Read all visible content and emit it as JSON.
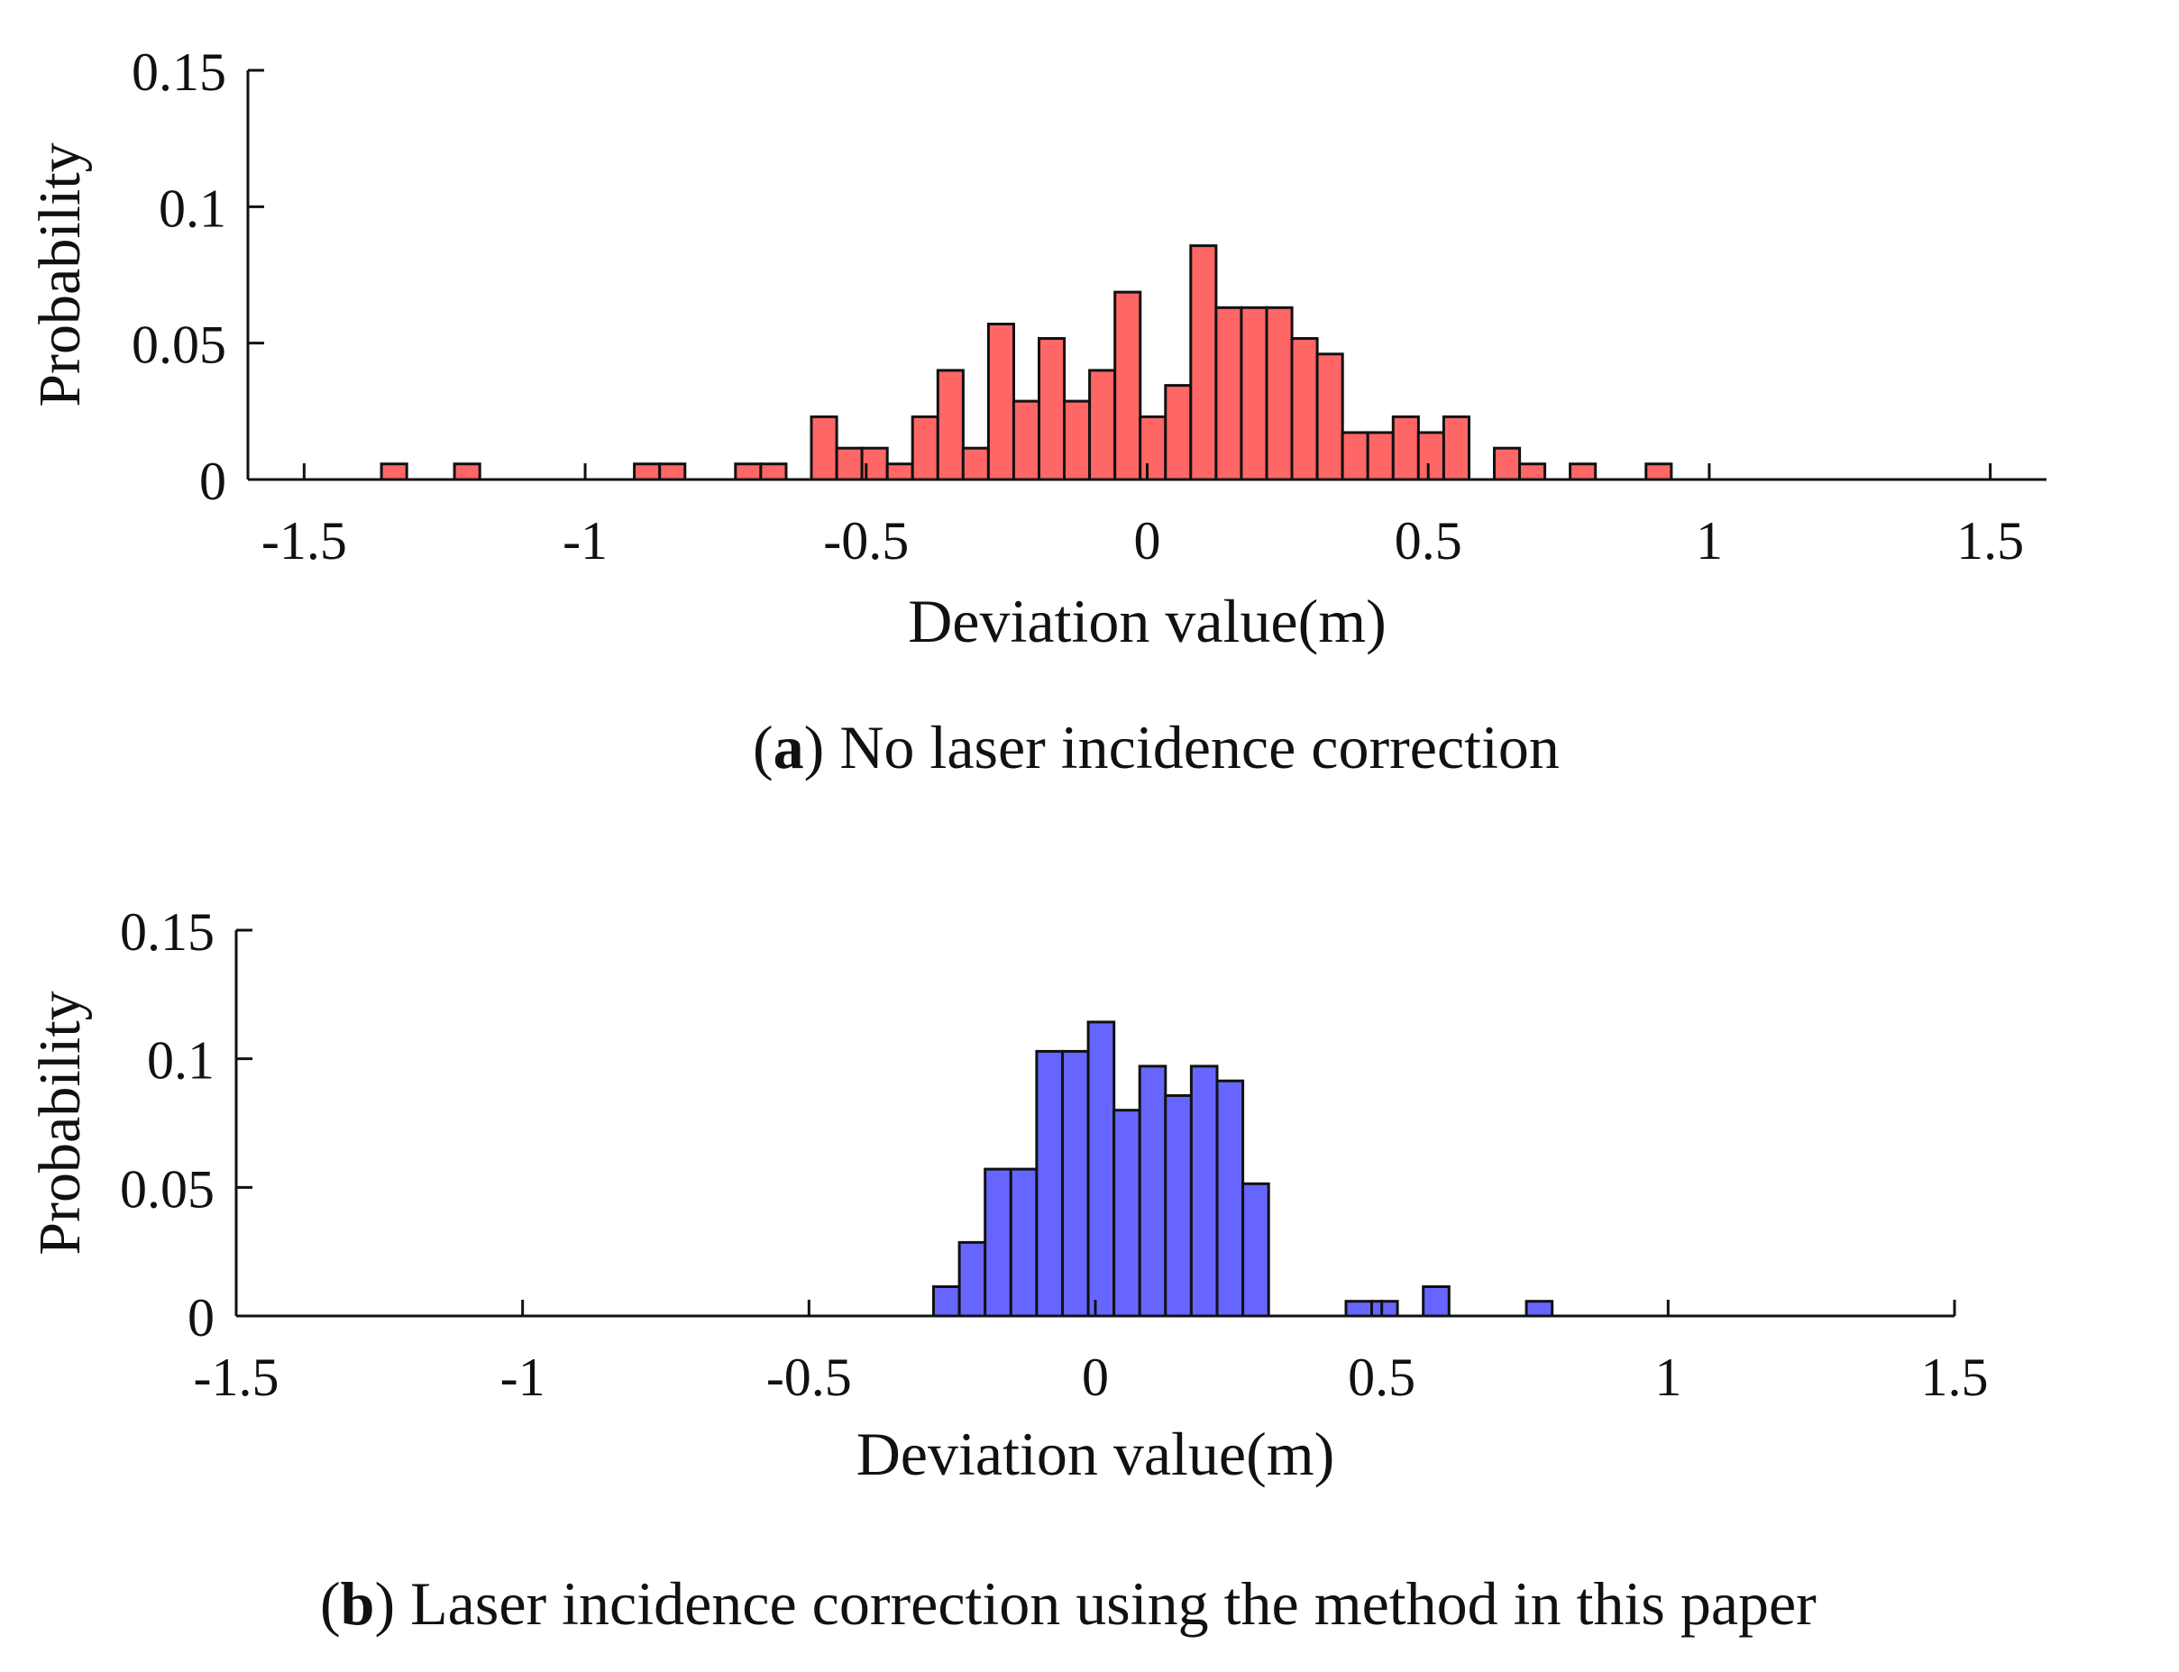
{
  "chart_data": [
    {
      "id": "a",
      "type": "bar",
      "subtype": "histogram",
      "caption_letter": "a",
      "caption_text": "No laser incidence correction",
      "xlabel": "Deviation value(m)",
      "ylabel": "Probability",
      "xlim": [
        -1.6,
        1.6
      ],
      "ylim": [
        0,
        0.15
      ],
      "xticks": [
        -1.5,
        -1,
        -0.5,
        0,
        0.5,
        1,
        1.5
      ],
      "xtick_labels": [
        "-1.5",
        "-1",
        "-0.5",
        "0",
        "0.5",
        "1",
        "1.5"
      ],
      "yticks": [
        0,
        0.05,
        0.1,
        0.15
      ],
      "ytick_labels": [
        "0",
        "0.05",
        "0.1",
        "0.15"
      ],
      "bin_width": 0.045,
      "bar_color": "#ff6666",
      "edge_color": "#111111",
      "bins": [
        {
          "x": -1.34,
          "p": 0.0057
        },
        {
          "x": -1.21,
          "p": 0.0057
        },
        {
          "x": -0.89,
          "p": 0.0057
        },
        {
          "x": -0.845,
          "p": 0.0057
        },
        {
          "x": -0.71,
          "p": 0.0057
        },
        {
          "x": -0.665,
          "p": 0.0057
        },
        {
          "x": -0.575,
          "p": 0.023
        },
        {
          "x": -0.53,
          "p": 0.0115
        },
        {
          "x": -0.485,
          "p": 0.0115
        },
        {
          "x": -0.44,
          "p": 0.0057
        },
        {
          "x": -0.395,
          "p": 0.023
        },
        {
          "x": -0.35,
          "p": 0.04
        },
        {
          "x": -0.305,
          "p": 0.0115
        },
        {
          "x": -0.26,
          "p": 0.057
        },
        {
          "x": -0.215,
          "p": 0.0287
        },
        {
          "x": -0.17,
          "p": 0.0517
        },
        {
          "x": -0.125,
          "p": 0.0287
        },
        {
          "x": -0.08,
          "p": 0.04
        },
        {
          "x": -0.035,
          "p": 0.0687
        },
        {
          "x": 0.01,
          "p": 0.023
        },
        {
          "x": 0.055,
          "p": 0.0345
        },
        {
          "x": 0.1,
          "p": 0.0857
        },
        {
          "x": 0.145,
          "p": 0.063
        },
        {
          "x": 0.19,
          "p": 0.063
        },
        {
          "x": 0.235,
          "p": 0.063
        },
        {
          "x": 0.28,
          "p": 0.0517
        },
        {
          "x": 0.325,
          "p": 0.046
        },
        {
          "x": 0.37,
          "p": 0.0172
        },
        {
          "x": 0.415,
          "p": 0.0172
        },
        {
          "x": 0.46,
          "p": 0.023
        },
        {
          "x": 0.505,
          "p": 0.0172
        },
        {
          "x": 0.55,
          "p": 0.023
        },
        {
          "x": 0.64,
          "p": 0.0115
        },
        {
          "x": 0.685,
          "p": 0.0057
        },
        {
          "x": 0.775,
          "p": 0.0057
        },
        {
          "x": 0.91,
          "p": 0.0057
        }
      ]
    },
    {
      "id": "b",
      "type": "bar",
      "subtype": "histogram",
      "caption_letter": "b",
      "caption_text": "Laser incidence correction using the method in this paper",
      "xlabel": "Deviation value(m)",
      "ylabel": "Probability",
      "xlim": [
        -1.5,
        1.5
      ],
      "ylim": [
        0,
        0.15
      ],
      "xticks": [
        -1.5,
        -1,
        -0.5,
        0,
        0.5,
        1,
        1.5
      ],
      "xtick_labels": [
        "-1.5",
        "-1",
        "-0.5",
        "0",
        "0.5",
        "1",
        "1.5"
      ],
      "yticks": [
        0,
        0.05,
        0.1,
        0.15
      ],
      "ytick_labels": [
        "0",
        "0.05",
        "0.1",
        "0.15"
      ],
      "bin_width": 0.045,
      "bar_color": "#6666ff",
      "edge_color": "#111111",
      "bins": [
        {
          "x": -0.26,
          "p": 0.0114
        },
        {
          "x": -0.215,
          "p": 0.0286
        },
        {
          "x": -0.17,
          "p": 0.0571
        },
        {
          "x": -0.125,
          "p": 0.0571
        },
        {
          "x": -0.08,
          "p": 0.1029
        },
        {
          "x": -0.035,
          "p": 0.1029
        },
        {
          "x": 0.01,
          "p": 0.1143
        },
        {
          "x": 0.055,
          "p": 0.08
        },
        {
          "x": 0.1,
          "p": 0.0971
        },
        {
          "x": 0.145,
          "p": 0.0857
        },
        {
          "x": 0.19,
          "p": 0.0971
        },
        {
          "x": 0.235,
          "p": 0.0914
        },
        {
          "x": 0.28,
          "p": 0.0514
        },
        {
          "x": 0.46,
          "p": 0.0057
        },
        {
          "x": 0.505,
          "p": 0.0057
        },
        {
          "x": 0.595,
          "p": 0.0114
        },
        {
          "x": 0.775,
          "p": 0.0057
        }
      ]
    }
  ]
}
